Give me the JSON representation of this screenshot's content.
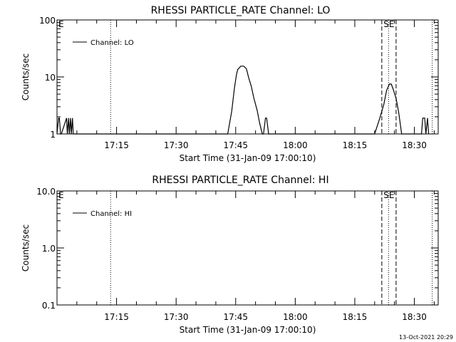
{
  "chart_data": [
    {
      "type": "line",
      "title": "RHESSI PARTICLE_RATE Channel: LO",
      "xlabel": "Start Time (31-Jan-09 17:00:10)",
      "ylabel": "Counts/sec",
      "y_scale": "log",
      "xlim_minutes": [
        0,
        44
      ],
      "ylim": [
        1,
        100
      ],
      "xticks": [
        {
          "label": "17:15",
          "minute": 15
        },
        {
          "label": "17:30",
          "minute": 30
        },
        {
          "label": "17:45",
          "minute": 45
        },
        {
          "label": "18:00",
          "minute": 60
        },
        {
          "label": "18:15",
          "minute": 75
        },
        {
          "label": "18:30",
          "minute": 90
        }
      ],
      "yticks": [
        {
          "label": "1",
          "value": 1
        },
        {
          "label": "10",
          "value": 10
        },
        {
          "label": "100",
          "value": 100
        }
      ],
      "legend": {
        "label": "Channel: LO",
        "placement": "top-left"
      },
      "edge_label": "E",
      "event_label": "SE",
      "dotted_lines_minute": [
        13.5,
        83.5,
        94.5
      ],
      "dashed_lines_minute": [
        81.8,
        85.4
      ],
      "series": [
        {
          "name": "Channel: LO",
          "x": [
            0,
            0.4,
            0.6,
            0.9,
            1.1,
            2.4,
            2.6,
            2.9,
            3.1,
            3.4,
            3.6,
            3.9,
            4.1,
            43,
            44,
            44.7,
            45.2,
            45.5,
            46.3,
            47,
            47.7,
            48.3,
            48.9,
            49.6,
            50.4,
            51,
            51.7,
            52,
            52.5,
            52.8,
            53.3,
            80,
            81.3,
            82.3,
            83,
            83.7,
            84.2,
            84.7,
            85.4,
            86,
            86.4,
            86.8,
            91.8,
            92.1,
            92.6,
            92.9,
            93.3,
            93.6
          ],
          "y": [
            1,
            1.9,
            1.9,
            1,
            1,
            1.9,
            1,
            1.9,
            1,
            1.9,
            1,
            1.9,
            1,
            1,
            2.5,
            6.5,
            11,
            13.5,
            15.5,
            15.5,
            14,
            9.5,
            7,
            4.2,
            2.6,
            1.6,
            1,
            1,
            1.9,
            1.9,
            1,
            1,
            1.9,
            3.3,
            5.8,
            7.5,
            7.5,
            6,
            4.2,
            2.5,
            1.6,
            1,
            1,
            1.9,
            1.9,
            1,
            1.9,
            1
          ]
        }
      ]
    },
    {
      "type": "line",
      "title": "RHESSI PARTICLE_RATE Channel: HI",
      "xlabel": "Start Time (31-Jan-09 17:00:10)",
      "ylabel": "Counts/sec",
      "y_scale": "log",
      "xlim_minutes": [
        0,
        44
      ],
      "ylim": [
        0.1,
        10
      ],
      "xticks": [
        {
          "label": "17:15",
          "minute": 15
        },
        {
          "label": "17:30",
          "minute": 30
        },
        {
          "label": "17:45",
          "minute": 45
        },
        {
          "label": "18:00",
          "minute": 60
        },
        {
          "label": "18:15",
          "minute": 75
        },
        {
          "label": "18:30",
          "minute": 90
        }
      ],
      "yticks": [
        {
          "label": "0.1",
          "value": 0.1
        },
        {
          "label": "1.0",
          "value": 1
        },
        {
          "label": "10.0",
          "value": 10
        }
      ],
      "legend": {
        "label": "Channel: HI",
        "placement": "top-left"
      },
      "edge_label": "E",
      "event_label": "SE",
      "dotted_lines_minute": [
        13.5,
        83.5,
        94.5
      ],
      "dashed_lines_minute": [
        81.8,
        85.4
      ],
      "series": [
        {
          "name": "Channel: HI",
          "x": [],
          "y": []
        }
      ]
    }
  ],
  "footer": {
    "timestamp": "13-Oct-2021 20:29"
  }
}
